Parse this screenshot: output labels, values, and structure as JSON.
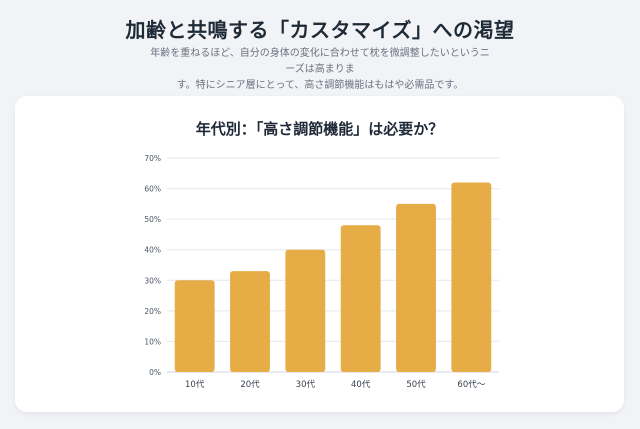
{
  "header": {
    "title": "加齢と共鳴する「カスタマイズ」への渇望",
    "lead_line1": "年齢を重ねるほど、自分の身体の変化に合わせて枕を微調整したいというニーズは高まりま",
    "lead_line2": "す。特にシニア層にとって、高さ調節機能はもはや必需品です。"
  },
  "colors": {
    "bar": "#e6ac45",
    "grid": "#e5e7eb",
    "axis_text": "#4b5563"
  },
  "chart_data": {
    "type": "bar",
    "title": "年代別：「高さ調節機能」は必要か？",
    "categories": [
      "10代",
      "20代",
      "30代",
      "40代",
      "50代",
      "60代〜"
    ],
    "values": [
      30,
      33,
      40,
      48,
      55,
      62
    ],
    "ylim": [
      0,
      70
    ],
    "yticks": [
      "0%",
      "10%",
      "20%",
      "30%",
      "40%",
      "50%",
      "60%",
      "70%"
    ],
    "grid": true,
    "xlabel": "",
    "ylabel": ""
  }
}
